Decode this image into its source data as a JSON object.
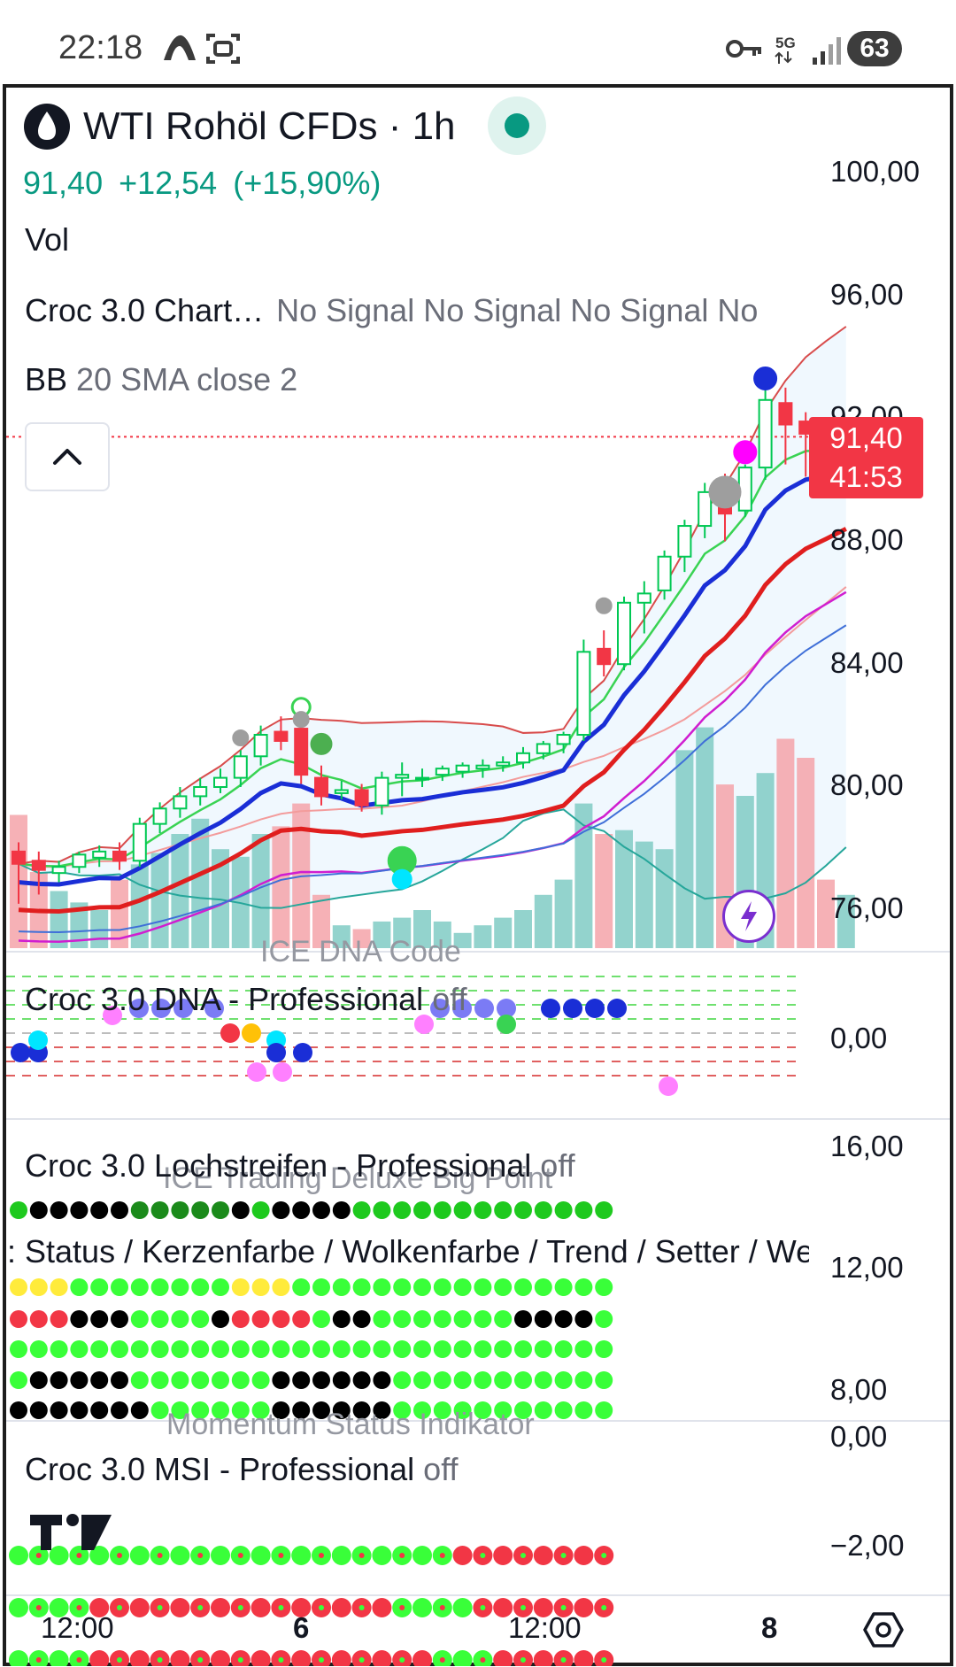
{
  "status_bar": {
    "time": "22:18",
    "left_icons": [
      "cloud-icon",
      "screenshot-icon"
    ],
    "right_icons": [
      "key-icon",
      "5g-icon",
      "signal-icon"
    ],
    "network": "5G",
    "battery": "63"
  },
  "header": {
    "symbol_icon": "drop-icon",
    "title": "WTI Rohöl CFDs · 1h",
    "live_indicator_color": "#089981",
    "last_price": "91,40",
    "change": "+12,54",
    "change_pct": "(+15,90%)"
  },
  "legend": {
    "vol": "Vol",
    "croc_name": "Croc 3.0 Chart…",
    "croc_signals": "No Signal No Signal No Signal No",
    "bb_name": "BB",
    "bb_params": "20 SMA close 2"
  },
  "price_axis": [
    "100,00",
    "96,00",
    "92,00",
    "88,00",
    "84,00",
    "80,00",
    "76,00"
  ],
  "current_price_tag": {
    "price": "91,40",
    "countdown": "41:53",
    "color": "#f23645"
  },
  "panes": {
    "dna": {
      "overlay": "ICE DNA Code",
      "title": "Croc 3.0 DNA - Professional",
      "state": "off",
      "axis": [
        "0,00"
      ]
    },
    "lochstreifen": {
      "overlay": "ICE Trading Deluxe Big Point",
      "title": "Croc 3.0 Lochstreifen - Professional",
      "state": "off",
      "subtitle": ": Status / Kerzenfarbe / Wolkenfarbe / Trend / Setter / We",
      "axis": [
        "16,00",
        "12,00",
        "8,00"
      ]
    },
    "msi": {
      "overlay": "Momentum Status Indikator",
      "title": "Croc 3.0 MSI - Professional",
      "state": "off",
      "axis": [
        "0,00",
        "−2,00"
      ]
    }
  },
  "time_axis": [
    "12:00",
    "6",
    "12:00",
    "8"
  ],
  "colors": {
    "up": "#00c853",
    "down": "#f23645",
    "accent": "#089981",
    "purple": "#7a2fcf"
  },
  "chart_data": {
    "type": "candlestick",
    "symbol": "WTI Rohöl CFDs",
    "interval": "1h",
    "ylim": [
      75,
      102
    ],
    "ohlc": [
      [
        77.9,
        78.2,
        76.2,
        77.5
      ],
      [
        77.6,
        77.9,
        76.5,
        77.3
      ],
      [
        77.2,
        77.6,
        76.9,
        77.4
      ],
      [
        77.4,
        77.9,
        77.2,
        77.8
      ],
      [
        77.7,
        78.1,
        77.4,
        77.9
      ],
      [
        77.9,
        78.2,
        77.3,
        77.6
      ],
      [
        77.6,
        79.0,
        77.4,
        78.8
      ],
      [
        78.8,
        79.5,
        78.5,
        79.3
      ],
      [
        79.3,
        80.0,
        79.0,
        79.7
      ],
      [
        79.7,
        80.3,
        79.4,
        80.0
      ],
      [
        80.0,
        80.6,
        79.8,
        80.3
      ],
      [
        80.3,
        81.2,
        80.0,
        81.0
      ],
      [
        81.0,
        82.0,
        80.7,
        81.7
      ],
      [
        81.8,
        82.3,
        81.2,
        81.5
      ],
      [
        81.9,
        82.3,
        80.1,
        80.4
      ],
      [
        80.3,
        80.7,
        79.4,
        79.7
      ],
      [
        79.8,
        80.2,
        79.6,
        79.9
      ],
      [
        79.9,
        80.1,
        79.2,
        79.4
      ],
      [
        79.4,
        80.5,
        79.1,
        80.3
      ],
      [
        80.3,
        80.8,
        79.7,
        80.4
      ],
      [
        80.3,
        80.6,
        80.0,
        80.3
      ],
      [
        80.4,
        80.7,
        80.2,
        80.6
      ],
      [
        80.5,
        80.8,
        80.3,
        80.7
      ],
      [
        80.6,
        80.9,
        80.3,
        80.7
      ],
      [
        80.7,
        81.0,
        80.5,
        80.8
      ],
      [
        80.8,
        81.3,
        80.6,
        81.1
      ],
      [
        81.1,
        81.5,
        80.9,
        81.4
      ],
      [
        81.4,
        81.8,
        81.1,
        81.7
      ],
      [
        81.7,
        84.8,
        81.5,
        84.4
      ],
      [
        84.5,
        85.1,
        83.6,
        84.0
      ],
      [
        84.0,
        86.2,
        83.8,
        86.0
      ],
      [
        86.0,
        86.7,
        85.0,
        86.3
      ],
      [
        86.4,
        87.7,
        86.1,
        87.5
      ],
      [
        87.5,
        88.7,
        87.0,
        88.5
      ],
      [
        88.5,
        89.9,
        88.1,
        89.6
      ],
      [
        89.8,
        90.2,
        88.0,
        88.9
      ],
      [
        89.0,
        90.5,
        88.8,
        90.4
      ],
      [
        90.4,
        93.0,
        90.0,
        92.6
      ],
      [
        92.5,
        93.0,
        90.5,
        91.8
      ],
      [
        91.9,
        92.2,
        90.1,
        91.5
      ],
      [
        91.5,
        91.8,
        90.6,
        91.0
      ],
      [
        91.0,
        91.6,
        90.5,
        91.4
      ]
    ],
    "volume": [
      35,
      20,
      15,
      12,
      10,
      18,
      22,
      25,
      30,
      34,
      26,
      24,
      30,
      32,
      38,
      14,
      6,
      5,
      7,
      8,
      10,
      7,
      4,
      6,
      8,
      10,
      14,
      18,
      38,
      30,
      31,
      28,
      26,
      52,
      58,
      43,
      40,
      46,
      55,
      50,
      18,
      14
    ],
    "bollinger": {
      "period": 20,
      "type": "SMA",
      "source": "close",
      "mult": 2
    }
  }
}
